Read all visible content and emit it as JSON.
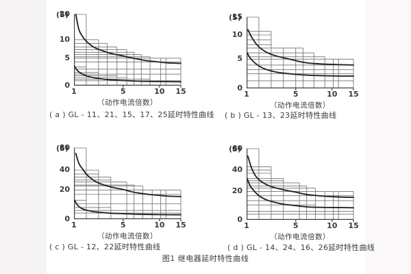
{
  "page": {
    "figure_caption": "图1 继电器延时特性曲线",
    "background_color": "#f7f4f5",
    "paper_color": "#ffffff",
    "text_color": "#3a3a3a",
    "grid_color": "#6f6f6f",
    "curve_color": "#242424"
  },
  "chart_data": [
    {
      "id": "a",
      "type": "line",
      "caption": "( a ) GL - 11、21、15、17、25延时特性曲线",
      "xlabel": "（动作电流倍数）",
      "y_unit": "(S)",
      "x_ticks": [
        1,
        5,
        10,
        15
      ],
      "y_ticks": [
        0,
        5,
        10,
        20
      ],
      "x_range": [
        1,
        15
      ],
      "y_range": [
        0,
        20
      ],
      "x_anchors": [
        [
          1,
          0
        ],
        [
          5,
          0.46
        ],
        [
          10,
          0.8
        ],
        [
          15,
          1
        ]
      ],
      "y_anchors": [
        [
          0,
          0
        ],
        [
          5,
          0.385
        ],
        [
          10,
          0.645
        ],
        [
          20,
          1
        ]
      ],
      "band_hlines": [
        [
          20,
          2
        ],
        [
          10,
          3
        ],
        [
          9,
          3.7
        ],
        [
          8,
          4.5
        ],
        [
          7.3,
          5.5
        ],
        [
          6.6,
          6.5
        ],
        [
          6,
          7.5
        ],
        [
          5.4,
          8.7
        ],
        [
          5,
          15
        ],
        [
          4.3,
          15
        ],
        [
          3.4,
          2
        ],
        [
          3.0,
          15
        ],
        [
          2.4,
          3
        ],
        [
          2.1,
          15
        ],
        [
          1.8,
          4.5
        ],
        [
          1.5,
          5.5
        ],
        [
          1.2,
          8.7
        ],
        [
          0.9,
          15
        ]
      ],
      "band_vlines": [
        [
          2,
          20
        ],
        [
          3,
          10
        ],
        [
          3.7,
          9
        ],
        [
          4.5,
          8
        ],
        [
          5.5,
          7.3
        ],
        [
          6.5,
          6.6
        ],
        [
          7.5,
          6
        ],
        [
          8.7,
          5.4
        ],
        [
          10.3,
          5
        ],
        [
          11.5,
          5
        ],
        [
          15,
          5
        ]
      ],
      "series": [
        {
          "name": "upper-limit-curve",
          "points": [
            [
              1.15,
              20
            ],
            [
              1.4,
              14
            ],
            [
              1.7,
              11.2
            ],
            [
              2,
              9.6
            ],
            [
              2.5,
              8.2
            ],
            [
              3,
              7.4
            ],
            [
              4,
              6.3
            ],
            [
              5,
              5.6
            ],
            [
              6,
              5.15
            ],
            [
              7,
              4.85
            ],
            [
              8,
              4.6
            ],
            [
              10,
              4.3
            ],
            [
              12,
              4.15
            ],
            [
              15,
              4.05
            ]
          ]
        },
        {
          "name": "lower-limit-curve",
          "points": [
            [
              1.05,
              3.5
            ],
            [
              1.3,
              2.7
            ],
            [
              1.6,
              2.2
            ],
            [
              2,
              1.8
            ],
            [
              2.5,
              1.5
            ],
            [
              3,
              1.3
            ],
            [
              4,
              1.05
            ],
            [
              5,
              0.95
            ],
            [
              7,
              0.82
            ],
            [
              10,
              0.74
            ],
            [
              15,
              0.7
            ]
          ]
        }
      ]
    },
    {
      "id": "b",
      "type": "line",
      "caption": "( b ) GL - 13、23延时特性曲线",
      "xlabel": "（动作电流倍数）",
      "y_unit": "(S)",
      "x_ticks": [
        1,
        5,
        10,
        15
      ],
      "y_ticks": [
        0,
        5,
        10,
        15
      ],
      "x_range": [
        1,
        15
      ],
      "y_range": [
        0,
        15
      ],
      "x_anchors": [
        [
          1,
          0
        ],
        [
          5,
          0.46
        ],
        [
          10,
          0.8
        ],
        [
          15,
          1
        ]
      ],
      "y_anchors": [
        [
          0,
          0
        ],
        [
          5,
          0.41
        ],
        [
          10,
          0.75
        ],
        [
          15,
          1
        ]
      ],
      "band_hlines": [
        [
          15,
          2
        ],
        [
          11,
          3
        ],
        [
          10,
          3
        ],
        [
          9,
          3
        ],
        [
          8,
          3
        ],
        [
          7.3,
          6
        ],
        [
          6.3,
          7.5
        ],
        [
          5.5,
          9
        ],
        [
          5,
          15
        ],
        [
          4,
          15
        ],
        [
          3.2,
          15
        ],
        [
          2.5,
          15
        ],
        [
          1.3,
          15
        ]
      ],
      "band_vlines": [
        [
          2,
          15
        ],
        [
          3,
          11
        ],
        [
          4,
          7.3
        ],
        [
          5,
          7.3
        ],
        [
          6,
          7.3
        ],
        [
          7.5,
          6.3
        ],
        [
          9,
          5.5
        ],
        [
          10.3,
          5
        ],
        [
          11.5,
          5
        ],
        [
          15,
          5
        ]
      ],
      "series": [
        {
          "name": "upper-limit-curve",
          "points": [
            [
              1.1,
              11.5
            ],
            [
              1.4,
              9.6
            ],
            [
              1.8,
              8.1
            ],
            [
              2.2,
              7.1
            ],
            [
              2.8,
              6.2
            ],
            [
              3.5,
              5.6
            ],
            [
              4.5,
              5.0
            ],
            [
              5.5,
              4.6
            ],
            [
              7,
              4.3
            ],
            [
              9,
              4.15
            ],
            [
              12,
              4.05
            ],
            [
              15,
              4.0
            ]
          ]
        },
        {
          "name": "lower-limit-curve",
          "points": [
            [
              1.05,
              6.3
            ],
            [
              1.3,
              5.2
            ],
            [
              1.7,
              4.3
            ],
            [
              2.2,
              3.6
            ],
            [
              2.8,
              3.1
            ],
            [
              3.5,
              2.75
            ],
            [
              4.5,
              2.5
            ],
            [
              6,
              2.3
            ],
            [
              8,
              2.2
            ],
            [
              11,
              2.12
            ],
            [
              15,
              2.1
            ]
          ]
        }
      ]
    },
    {
      "id": "c",
      "type": "line",
      "caption": "( c ) GL - 12、22延时特性曲线",
      "xlabel": "（动作电流倍数）",
      "y_unit": "(S)",
      "x_ticks": [
        1,
        5,
        10,
        15
      ],
      "y_ticks": [
        0,
        20,
        40,
        80
      ],
      "x_range": [
        1,
        15
      ],
      "y_range": [
        0,
        80
      ],
      "x_anchors": [
        [
          1,
          0
        ],
        [
          5,
          0.46
        ],
        [
          10,
          0.8
        ],
        [
          15,
          1
        ]
      ],
      "y_anchors": [
        [
          0,
          0
        ],
        [
          20,
          0.41
        ],
        [
          40,
          0.69
        ],
        [
          80,
          1
        ]
      ],
      "band_hlines": [
        [
          80,
          2
        ],
        [
          40,
          3
        ],
        [
          36,
          3
        ],
        [
          33,
          4
        ],
        [
          30,
          4
        ],
        [
          28,
          5.5
        ],
        [
          25,
          6.5
        ],
        [
          24,
          7.7
        ],
        [
          20,
          15
        ],
        [
          17,
          15
        ],
        [
          13,
          2
        ],
        [
          10.5,
          15
        ],
        [
          8,
          4
        ],
        [
          6,
          15
        ],
        [
          4.2,
          15
        ]
      ],
      "band_vlines": [
        [
          2,
          80
        ],
        [
          3,
          40
        ],
        [
          4,
          33
        ],
        [
          5.5,
          28
        ],
        [
          6.5,
          25
        ],
        [
          7.7,
          24
        ],
        [
          9,
          20
        ],
        [
          10.3,
          20
        ],
        [
          11.5,
          20
        ],
        [
          15,
          20
        ]
      ],
      "series": [
        {
          "name": "upper-limit-curve",
          "points": [
            [
              1.15,
              70
            ],
            [
              1.4,
              52
            ],
            [
              1.7,
              42
            ],
            [
              2,
              36
            ],
            [
              2.5,
              30.5
            ],
            [
              3,
              27
            ],
            [
              4,
              23
            ],
            [
              5,
              20.5
            ],
            [
              6,
              19
            ],
            [
              7,
              18
            ],
            [
              8.5,
              17
            ],
            [
              10,
              16.3
            ],
            [
              12,
              15.8
            ],
            [
              15,
              15.5
            ]
          ]
        },
        {
          "name": "lower-limit-curve",
          "points": [
            [
              1.05,
              13
            ],
            [
              1.3,
              9.5
            ],
            [
              1.6,
              7.5
            ],
            [
              2,
              6.2
            ],
            [
              2.5,
              5.3
            ],
            [
              3,
              4.8
            ],
            [
              4,
              4.1
            ],
            [
              5,
              3.8
            ],
            [
              7,
              3.4
            ],
            [
              10,
              3.15
            ],
            [
              15,
              3.0
            ]
          ]
        }
      ]
    },
    {
      "id": "d",
      "type": "line",
      "caption": "( d ) GL - 14、24、16、26延时特性曲线",
      "xlabel": "（动作电流倍数）",
      "y_unit": "(S)",
      "x_ticks": [
        1,
        5,
        10,
        15
      ],
      "y_ticks": [
        0,
        20,
        40,
        60
      ],
      "x_range": [
        1,
        15
      ],
      "y_range": [
        0,
        60
      ],
      "x_anchors": [
        [
          1,
          0
        ],
        [
          5,
          0.46
        ],
        [
          10,
          0.8
        ],
        [
          15,
          1
        ]
      ],
      "y_anchors": [
        [
          0,
          0
        ],
        [
          20,
          0.4
        ],
        [
          40,
          0.7
        ],
        [
          60,
          1
        ]
      ],
      "band_hlines": [
        [
          60,
          2
        ],
        [
          43,
          3
        ],
        [
          40,
          3
        ],
        [
          37,
          3
        ],
        [
          32,
          4
        ],
        [
          30,
          4
        ],
        [
          28,
          5.5
        ],
        [
          25,
          6.5
        ],
        [
          23,
          7.7
        ],
        [
          20,
          15
        ],
        [
          17,
          15
        ],
        [
          13.5,
          15
        ],
        [
          10.5,
          7.7
        ],
        [
          6,
          15
        ],
        [
          4,
          15
        ]
      ],
      "band_vlines": [
        [
          2,
          60
        ],
        [
          3,
          43
        ],
        [
          4,
          32
        ],
        [
          5.5,
          28
        ],
        [
          6.5,
          25
        ],
        [
          7.7,
          23
        ],
        [
          9,
          20
        ],
        [
          10.3,
          20
        ],
        [
          11.5,
          20
        ],
        [
          15,
          20
        ]
      ],
      "series": [
        {
          "name": "upper-limit-curve",
          "points": [
            [
              1.1,
              53
            ],
            [
              1.4,
              42
            ],
            [
              1.7,
              35
            ],
            [
              2,
              31
            ],
            [
              2.5,
              27
            ],
            [
              3,
              24.5
            ],
            [
              4,
              21.5
            ],
            [
              5,
              19.5
            ],
            [
              6,
              18.3
            ],
            [
              7,
              17.5
            ],
            [
              8.5,
              16.8
            ],
            [
              10,
              16.3
            ],
            [
              12,
              16
            ],
            [
              15,
              15.8
            ]
          ]
        },
        {
          "name": "lower-limit-curve",
          "points": [
            [
              1.05,
              32
            ],
            [
              1.3,
              25
            ],
            [
              1.7,
              19.5
            ],
            [
              2,
              17
            ],
            [
              2.5,
              14.5
            ],
            [
              3,
              13
            ],
            [
              4,
              11
            ],
            [
              5,
              10
            ],
            [
              6,
              9.4
            ],
            [
              7,
              9
            ],
            [
              8.5,
              8.8
            ],
            [
              10,
              8.7
            ],
            [
              15,
              8.5
            ]
          ]
        }
      ]
    }
  ]
}
